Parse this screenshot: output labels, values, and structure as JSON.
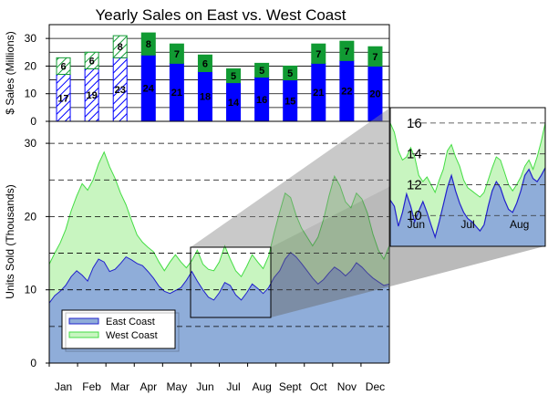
{
  "chart_data": [
    {
      "type": "bar",
      "stacked": true,
      "title": "Yearly Sales on East vs. West Coast",
      "ylabel": "$ Sales (Millions)",
      "ylim": [
        0,
        35
      ],
      "yticks": [
        0,
        10,
        20,
        30
      ],
      "categories": [
        "Jan",
        "Feb",
        "Mar",
        "Apr",
        "May",
        "Jun",
        "Jul",
        "Aug",
        "Sept",
        "Oct",
        "Nov",
        "Dec"
      ],
      "series": [
        {
          "values": [
            17,
            19,
            23,
            24,
            21,
            18,
            14,
            16,
            15,
            21,
            22,
            20
          ],
          "color": "#0000ff",
          "hatched_first": 3
        },
        {
          "values": [
            6,
            6,
            8,
            8,
            7,
            6,
            5,
            5,
            5,
            7,
            7,
            7
          ],
          "color": "#119a33",
          "hatched_first": 3
        }
      ],
      "grid": "horizontal"
    },
    {
      "type": "area",
      "ylabel": "Units Sold (Thousands)",
      "ylim": [
        0,
        33
      ],
      "yticks": [
        0,
        10,
        20,
        30
      ],
      "xticks": [
        "Jan",
        "Feb",
        "Mar",
        "Apr",
        "May",
        "Jun",
        "Jul",
        "Aug",
        "Sept",
        "Oct",
        "Nov",
        "Dec"
      ],
      "grid": "horizontal dashed",
      "legend": {
        "placement": "bottom-left"
      },
      "series": [
        {
          "name": "East Coast",
          "color": "#4b78cc",
          "fill": "#8fadd9",
          "values": [
            8.2,
            9.2,
            9.8,
            10.6,
            11.8,
            12.6,
            12.0,
            11.2,
            13.0,
            14.2,
            13.8,
            12.5,
            12.8,
            13.6,
            14.5,
            14.1,
            13.6,
            13.3,
            12.5,
            11.6,
            10.5,
            9.8,
            9.5,
            9.9,
            10.3,
            11.3,
            12.5,
            11.2,
            10.0,
            9.0,
            8.6,
            9.6,
            11.0,
            10.6,
            9.3,
            8.6,
            9.6,
            10.8,
            10.2,
            9.5,
            10.3,
            11.7,
            12.6,
            14.2,
            15.1,
            14.5,
            13.6,
            12.6,
            11.6,
            10.8,
            11.4,
            12.3,
            13.1,
            12.6,
            11.9,
            12.6,
            13.7,
            13.1,
            12.3,
            11.6,
            11.1,
            10.6,
            10.8
          ]
        },
        {
          "name": "West Coast",
          "color": "#44dd44",
          "fill": "#c8f5c0",
          "values": [
            13.5,
            15.0,
            16.4,
            18.2,
            20.8,
            22.8,
            24.5,
            23.6,
            25.0,
            27.2,
            28.8,
            26.8,
            25.2,
            23.2,
            21.6,
            19.5,
            17.5,
            16.5,
            15.8,
            15.2,
            13.8,
            12.6,
            13.8,
            14.8,
            13.8,
            13.0,
            14.0,
            15.4,
            13.5,
            12.8,
            12.6,
            13.8,
            16.0,
            14.2,
            12.6,
            11.8,
            13.2,
            14.8,
            13.8,
            12.9,
            14.6,
            17.8,
            20.6,
            23.2,
            22.6,
            20.2,
            18.4,
            17.2,
            16.0,
            17.2,
            19.6,
            22.8,
            25.5,
            24.2,
            22.0,
            21.2,
            23.2,
            22.4,
            20.5,
            17.6,
            15.4,
            14.2,
            16.0
          ]
        }
      ]
    },
    {
      "type": "area",
      "role": "zoom-inset",
      "ylim": [
        8,
        17
      ],
      "yticks": [
        10,
        12,
        14,
        16
      ],
      "xticks": [
        "Jun",
        "Jul",
        "Aug"
      ],
      "xrange": [
        "Jun",
        "Aug"
      ],
      "series": [
        {
          "name": "East Coast",
          "color": "#2222cc",
          "fill": "#8fadd9",
          "values": [
            11.0,
            10.6,
            9.3,
            10.2,
            11.4,
            10.6,
            9.6,
            10.3,
            10.9,
            10.2,
            9.4,
            8.6,
            9.6,
            10.7,
            11.8,
            12.6,
            11.6,
            10.8,
            10.2,
            9.8,
            9.6,
            9.3,
            9.0,
            9.4,
            10.6,
            11.6,
            12.2,
            11.8,
            11.0,
            10.4,
            10.2,
            10.8,
            11.6,
            12.6,
            13.0,
            12.4,
            12.2,
            12.6,
            13.1
          ]
        },
        {
          "name": "West Coast",
          "color": "#44dd44",
          "fill": "#c8f5c0",
          "values": [
            16.0,
            15.4,
            14.2,
            13.6,
            13.8,
            14.4,
            13.8,
            12.6,
            12.2,
            12.5,
            12.0,
            11.5,
            12.3,
            13.0,
            14.2,
            14.6,
            13.8,
            13.2,
            12.3,
            11.8,
            11.6,
            11.4,
            11.2,
            11.5,
            12.3,
            13.1,
            13.8,
            13.6,
            12.8,
            12.0,
            11.6,
            12.0,
            12.5,
            13.2,
            13.6,
            13.0,
            13.8,
            14.8,
            16.0
          ]
        }
      ]
    }
  ]
}
